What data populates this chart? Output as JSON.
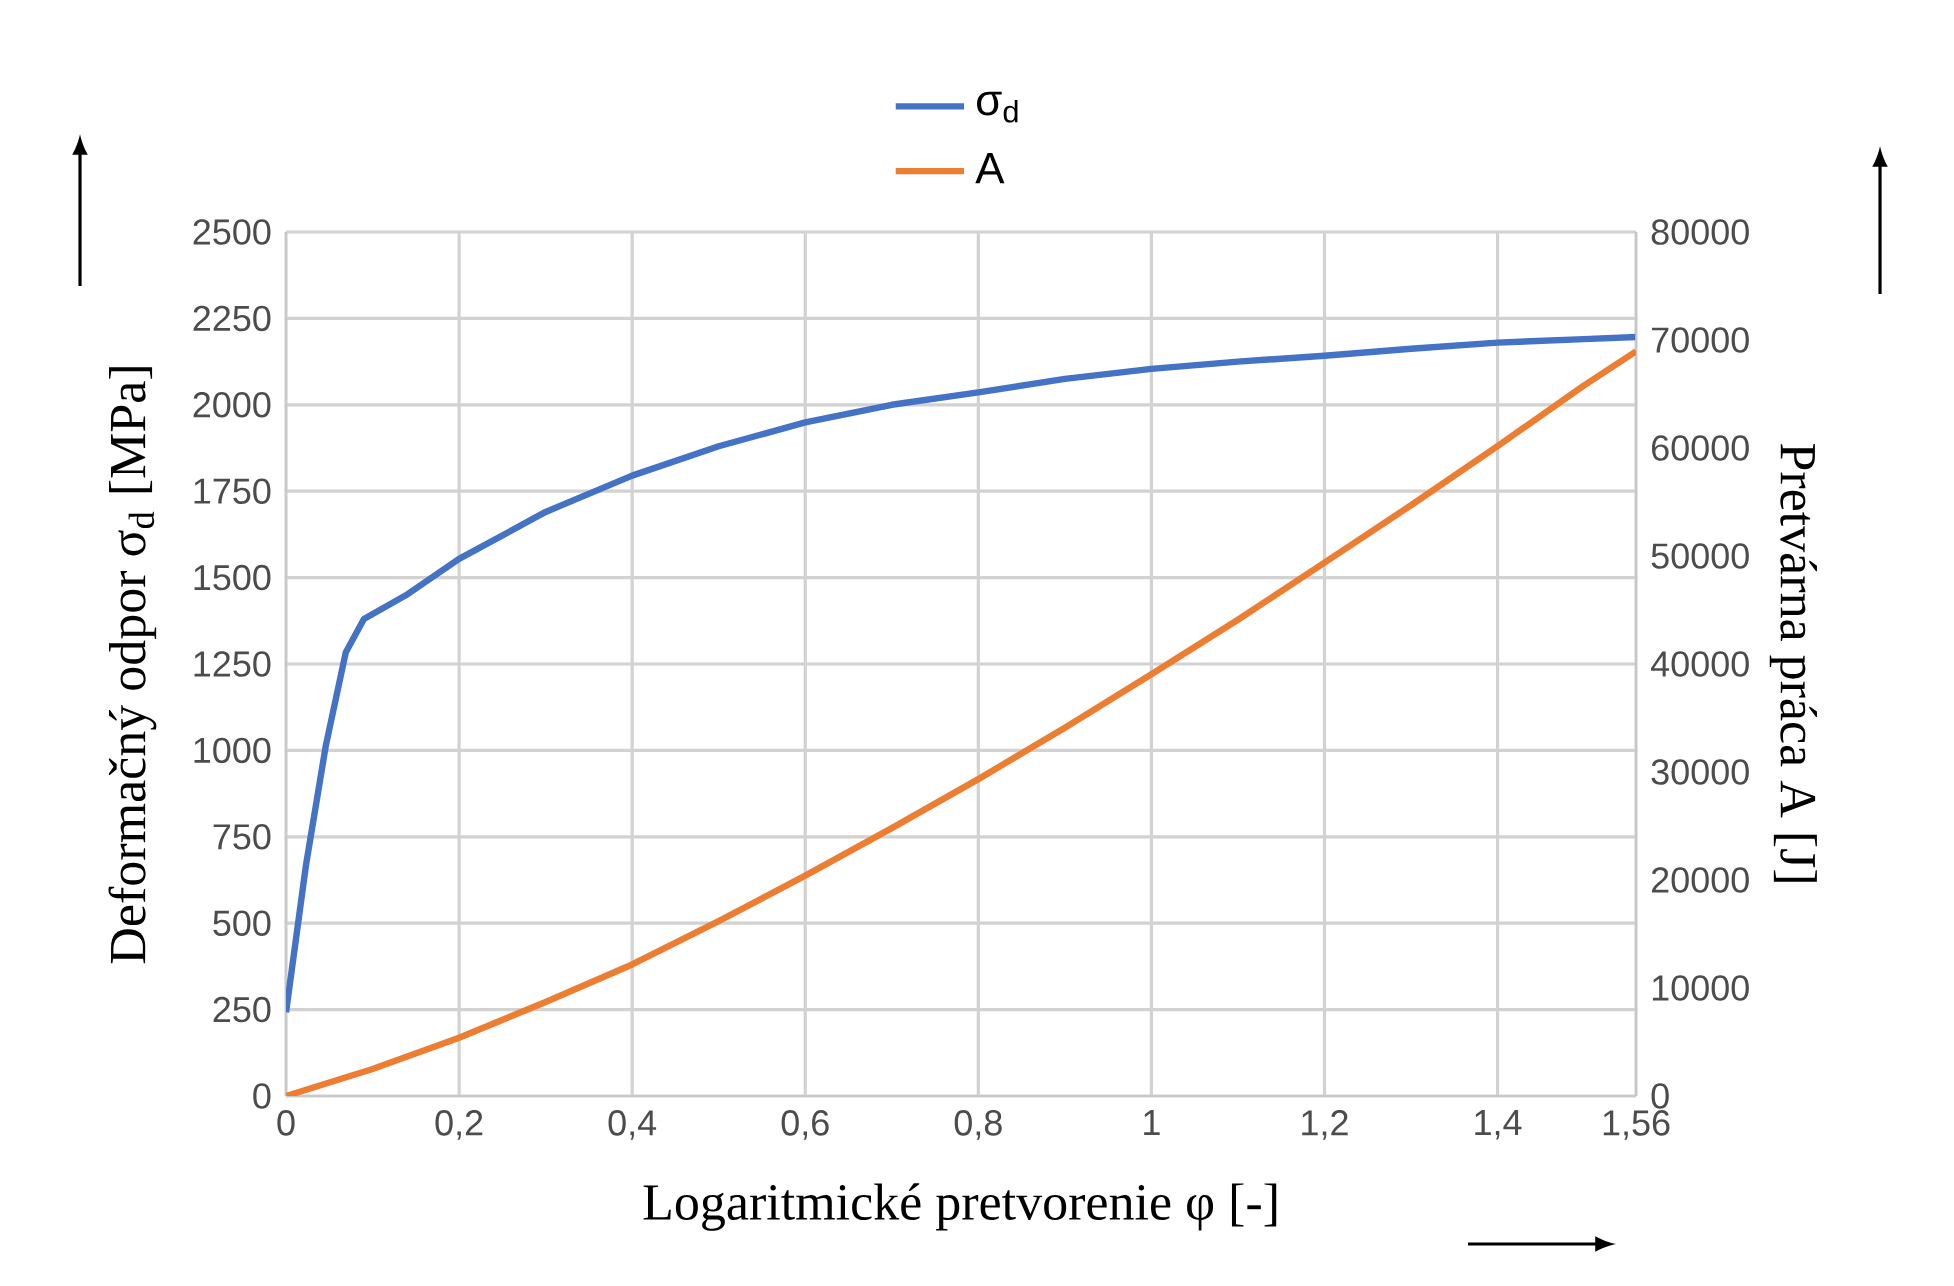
{
  "chart_data": {
    "type": "line",
    "xlabel": "Logaritmické pretvorenie   φ  [-]",
    "ylabel": "Deformačný odpor   σ$_{d}$  [MPa]",
    "y2label": "Pretvárna práca   A  [J]",
    "series": [
      {
        "name": "σ$_{d}$",
        "color": "#4472c4",
        "x": [
          0,
          0.023,
          0.046,
          0.069,
          0.09,
          0.138,
          0.2,
          0.3,
          0.4,
          0.5,
          0.6,
          0.7,
          0.8,
          0.9,
          1.0,
          1.1,
          1.2,
          1.3,
          1.4,
          1.5,
          1.56
        ],
        "values": [
          242,
          667,
          1014,
          1283,
          1380,
          1448,
          1554,
          1690,
          1795,
          1880,
          1949,
          2000,
          2036,
          2075,
          2104,
          2125,
          2142,
          2162,
          2180,
          2190,
          2196
        ]
      },
      {
        "name": "A",
        "color": "#ed7d31",
        "axis": "y2",
        "x": [
          0,
          0.1,
          0.2,
          0.3,
          0.4,
          0.5,
          0.6,
          0.7,
          0.8,
          0.9,
          1.0,
          1.1,
          1.2,
          1.3,
          1.4,
          1.5,
          1.56
        ],
        "values": [
          0,
          2500,
          5400,
          8700,
          12180,
          16200,
          20400,
          24800,
          29340,
          34100,
          39060,
          44100,
          49390,
          54700,
          60170,
          65800,
          68950
        ]
      }
    ],
    "xlim": [
      0,
      1.56
    ],
    "xticks": [
      0,
      {
        "value": 0.2,
        "label": "0,2"
      },
      {
        "value": 0.4,
        "label": "0,4"
      },
      {
        "value": 0.6,
        "label": "0,6"
      },
      {
        "value": 0.8,
        "label": "0,8"
      },
      1,
      {
        "value": 1.2,
        "label": "1,2"
      },
      {
        "value": 1.4,
        "label": "1,4"
      },
      {
        "value": 1.56,
        "label": "1,56"
      }
    ],
    "ylim": [
      0,
      2500
    ],
    "yticks": [
      0,
      250,
      500,
      750,
      1000,
      1250,
      1500,
      1750,
      2000,
      2250,
      2500
    ],
    "y2lim": [
      0,
      80000
    ],
    "y2ticks": [
      0,
      10000,
      20000,
      30000,
      40000,
      50000,
      60000,
      70000,
      80000
    ],
    "grid": true,
    "legend": "top",
    "marker": "none",
    "line_style": "solid"
  }
}
